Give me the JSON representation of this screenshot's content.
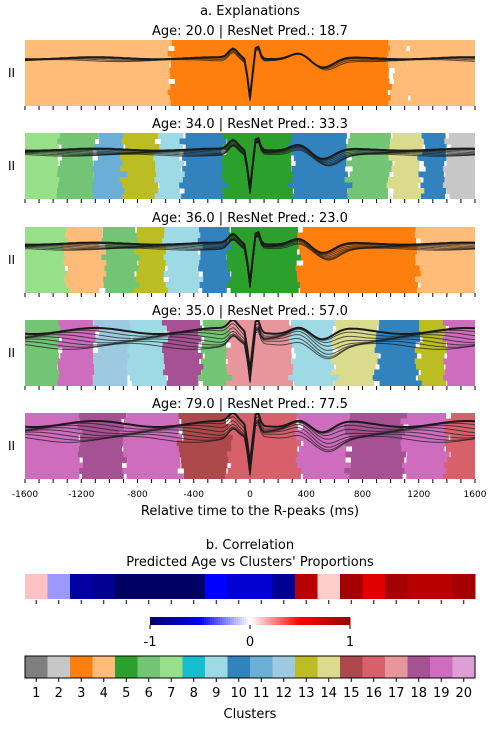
{
  "chart_data": {
    "type": "heatmap",
    "section_a_title": "a. Explanations",
    "lead_label": "II",
    "xlabel": "Relative time to the R-peaks (ms)",
    "x_ticks": [
      -1600,
      -1200,
      -800,
      -400,
      0,
      400,
      800,
      1200,
      1600
    ],
    "x_range": [
      -1600,
      1600
    ],
    "panels": [
      {
        "title": "Age: 20.0 | ResNet Pred.: 18.7",
        "age": 20.0,
        "pred": 18.7,
        "segments": [
          [
            -1600,
            -560,
            4
          ],
          [
            -560,
            1000,
            3
          ],
          [
            1000,
            1120,
            4
          ],
          [
            1120,
            1600,
            4
          ]
        ]
      },
      {
        "title": "Age: 34.0 | ResNet Pred.: 33.3",
        "age": 34.0,
        "pred": 33.3,
        "segments": [
          [
            -1600,
            -1350,
            7
          ],
          [
            -1350,
            -1100,
            6
          ],
          [
            -1100,
            -900,
            11
          ],
          [
            -900,
            -660,
            13
          ],
          [
            -660,
            -480,
            9
          ],
          [
            -480,
            -180,
            10
          ],
          [
            -180,
            300,
            5
          ],
          [
            300,
            700,
            10
          ],
          [
            700,
            1000,
            6
          ],
          [
            1000,
            1220,
            14
          ],
          [
            1220,
            1400,
            10
          ],
          [
            1400,
            1600,
            2
          ]
        ]
      },
      {
        "title": "Age: 36.0 | ResNet Pred.: 23.0",
        "age": 36.0,
        "pred": 23.0,
        "segments": [
          [
            -1600,
            -1300,
            7
          ],
          [
            -1300,
            -1050,
            4
          ],
          [
            -1050,
            -800,
            6
          ],
          [
            -800,
            -600,
            13
          ],
          [
            -600,
            -350,
            9
          ],
          [
            -350,
            -150,
            10
          ],
          [
            -150,
            350,
            5
          ],
          [
            350,
            1200,
            3
          ],
          [
            1200,
            1600,
            4
          ]
        ]
      },
      {
        "title": "Age: 35.0 | ResNet Pred.: 57.0",
        "age": 35.0,
        "pred": 57.0,
        "segments": [
          [
            -1600,
            -1350,
            6
          ],
          [
            -1350,
            -1100,
            19
          ],
          [
            -1100,
            -850,
            12
          ],
          [
            -850,
            -600,
            9
          ],
          [
            -600,
            -350,
            18
          ],
          [
            -350,
            -150,
            6
          ],
          [
            -150,
            300,
            17
          ],
          [
            300,
            600,
            9
          ],
          [
            600,
            900,
            14
          ],
          [
            900,
            1200,
            10
          ],
          [
            1200,
            1400,
            13
          ],
          [
            1400,
            1600,
            19
          ]
        ]
      },
      {
        "title": "Age: 79.0 | ResNet Pred.: 77.5",
        "age": 79.0,
        "pred": 77.5,
        "segments": [
          [
            -1600,
            -1200,
            19
          ],
          [
            -1200,
            -900,
            18
          ],
          [
            -900,
            -500,
            19
          ],
          [
            -500,
            -150,
            15
          ],
          [
            -150,
            350,
            16
          ],
          [
            350,
            700,
            19
          ],
          [
            700,
            1100,
            18
          ],
          [
            1100,
            1400,
            19
          ],
          [
            1400,
            1600,
            16
          ]
        ]
      }
    ],
    "correlation": {
      "title_line1": "b. Correlation",
      "title_line2": "Predicted Age vs Clusters' Proportions",
      "clusters": [
        1,
        2,
        3,
        4,
        5,
        6,
        7,
        8,
        9,
        10,
        11,
        12,
        13,
        14,
        15,
        16,
        17,
        18,
        19,
        20
      ],
      "values": [
        0.12,
        -0.2,
        -0.8,
        -0.85,
        -1.0,
        -1.0,
        -1.0,
        -1.0,
        -0.5,
        -0.65,
        -0.65,
        -0.85,
        0.85,
        0.1,
        0.95,
        0.65,
        0.95,
        0.85,
        0.85,
        0.95
      ],
      "colorbar_ticks": [
        "-1",
        "0",
        "1"
      ],
      "colorbar_range": [
        -1,
        1
      ]
    },
    "clusters_legend": {
      "xlabel": "Clusters",
      "labels": [
        "1",
        "2",
        "3",
        "4",
        "5",
        "6",
        "7",
        "8",
        "9",
        "10",
        "11",
        "12",
        "13",
        "14",
        "15",
        "16",
        "17",
        "18",
        "19",
        "20"
      ],
      "colors": [
        "#7f7f7f",
        "#c7c7c7",
        "#ff7f0e",
        "#ffbb78",
        "#2ca02c",
        "#74c476",
        "#98df8a",
        "#17becf",
        "#9edae5",
        "#3182bd",
        "#6baed6",
        "#9ecae1",
        "#bcbd22",
        "#dbdb8d",
        "#ad494a",
        "#d6616b",
        "#e7969c",
        "#a55194",
        "#ce6dbd",
        "#de9ed6"
      ]
    }
  }
}
